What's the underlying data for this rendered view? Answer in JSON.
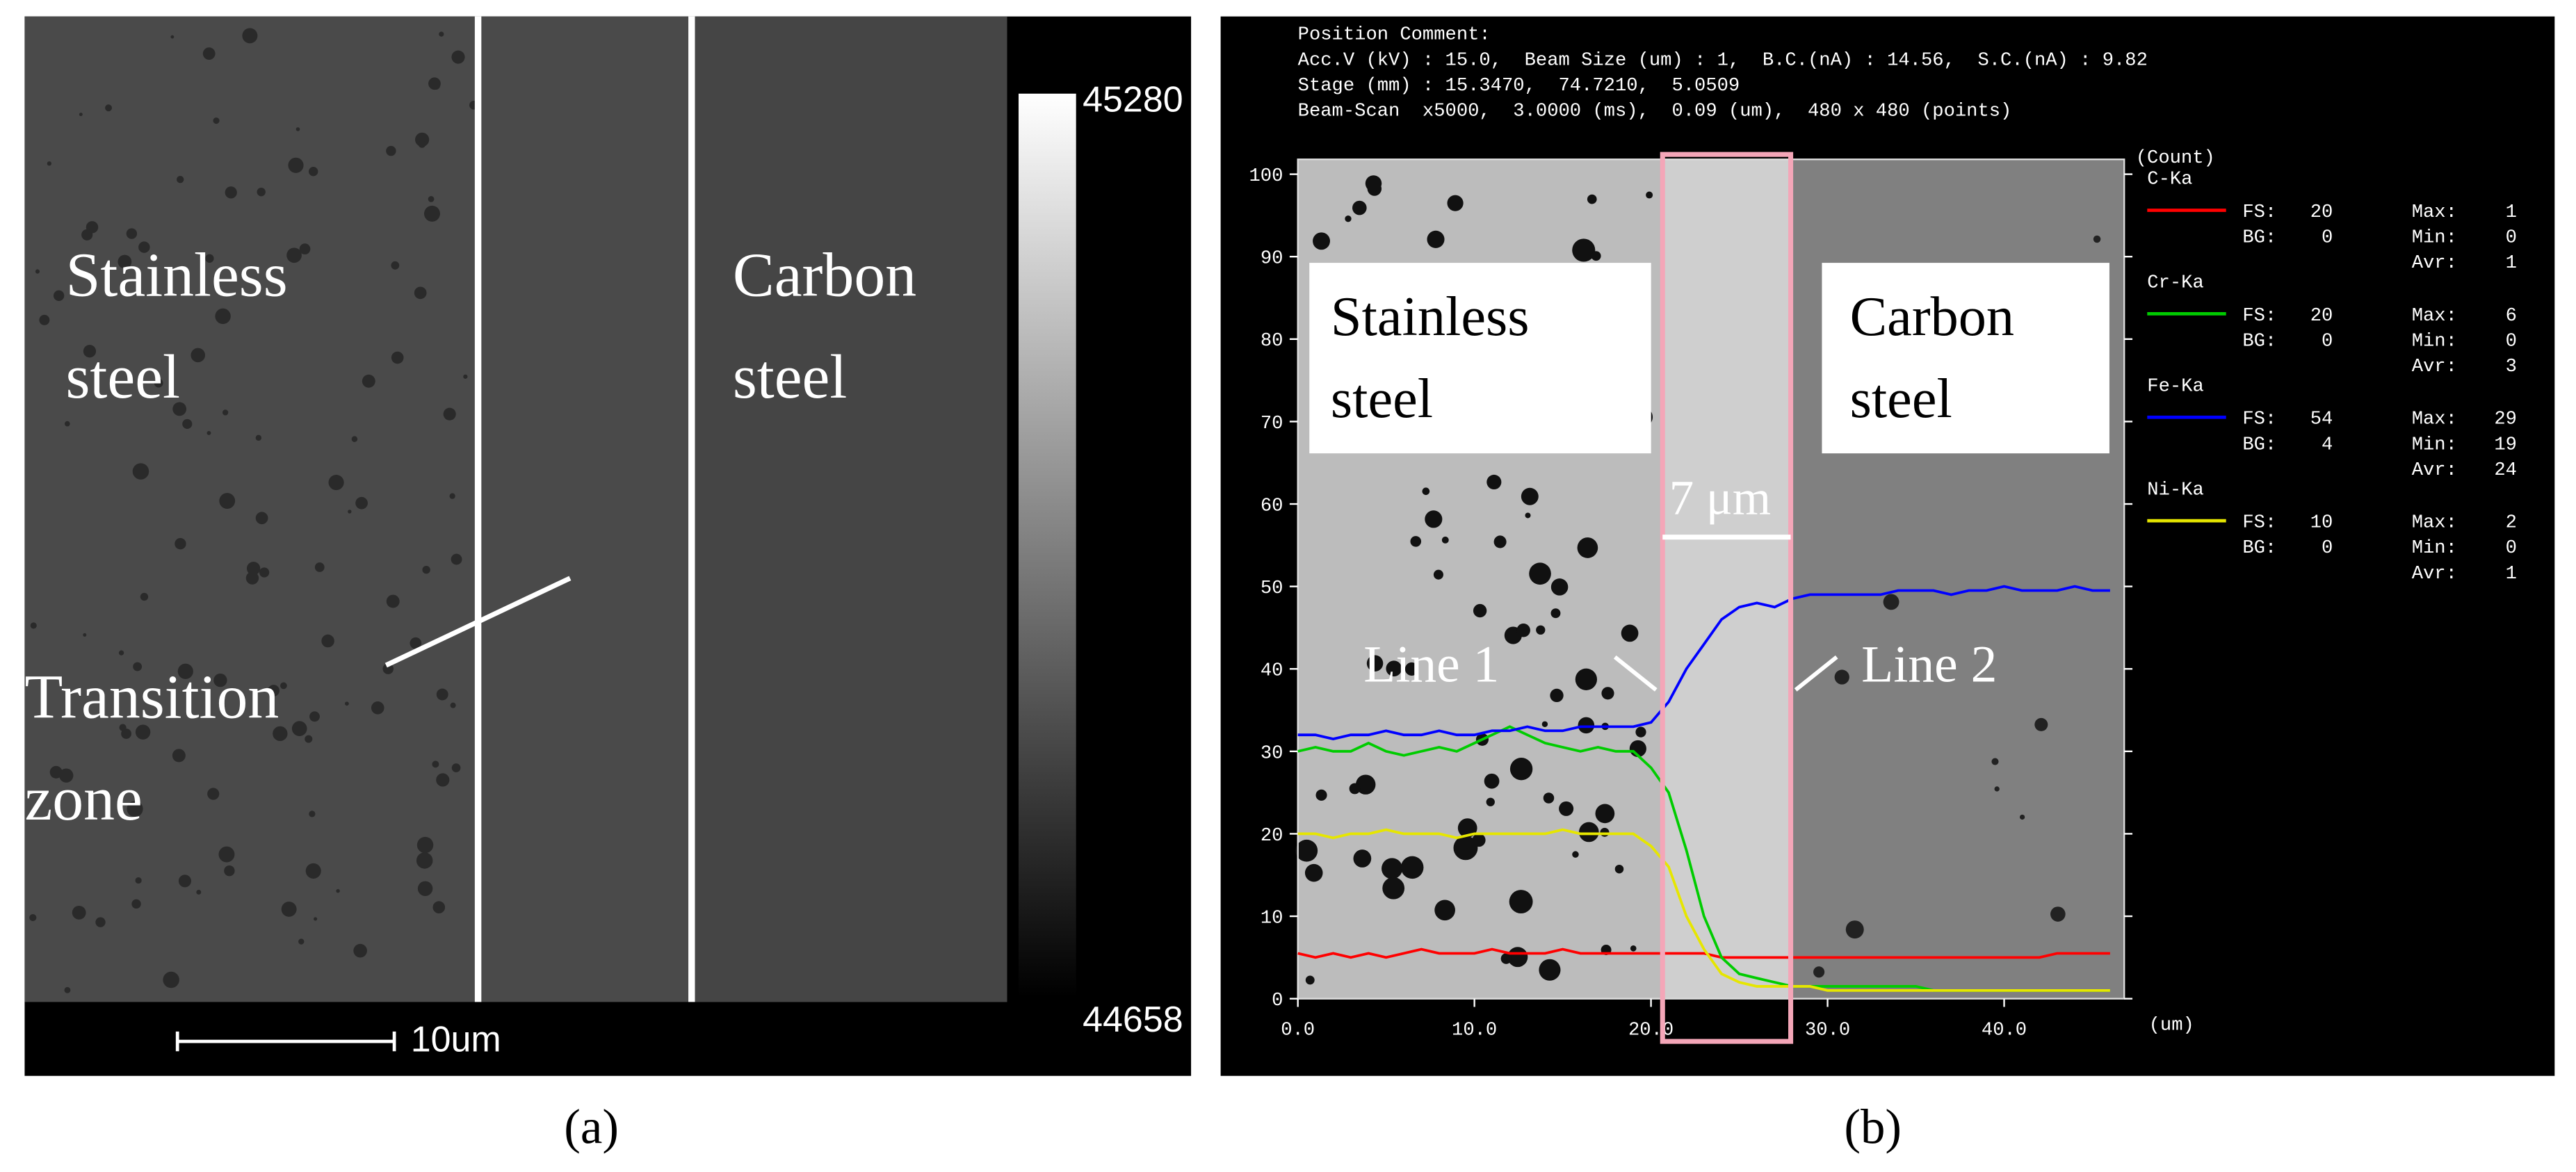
{
  "panel_a": {
    "label": "(a)",
    "left_text": [
      "Stainless",
      "steel"
    ],
    "right_text": [
      "Carbon",
      "steel"
    ],
    "zone_text": [
      "Transition",
      "zone"
    ],
    "scale_text": "10um",
    "colorbar_max": 45280,
    "colorbar_min": 44658
  },
  "chart_data": {
    "type": "line",
    "label": "(b)",
    "header": [
      "Position Comment:",
      "Acc.V (kV) : 15.0,  Beam Size (um) : 1,  B.C.(nA) : 14.56,  S.C.(nA) : 9.82",
      "Stage (mm) : 15.3470,  74.7210,  5.0509",
      "Beam-Scan  x5000,  3.0000 (ms),  0.09 (um),  480 x 480 (points)"
    ],
    "y_label": "(Count)",
    "x_label": "(um)",
    "xlim": [
      0,
      46.8
    ],
    "ylim": [
      0,
      101.8
    ],
    "xticks": [
      {
        "value": 0,
        "label": "0.0"
      },
      {
        "value": 10,
        "label": "10.0"
      },
      {
        "value": 20,
        "label": "20.0"
      },
      {
        "value": 30,
        "label": "30.0"
      },
      {
        "value": 40,
        "label": "40.0"
      }
    ],
    "yticks": [
      0,
      10,
      20,
      30,
      40,
      50,
      60,
      70,
      80,
      90,
      100
    ],
    "annotations": {
      "left": [
        "Stainless",
        "steel"
      ],
      "right": [
        "Carbon",
        "steel"
      ],
      "width": "7 μm",
      "line1": "Line 1",
      "line2": "Line 2"
    },
    "x": [
      0,
      1,
      2,
      3,
      4,
      5,
      6,
      7,
      8,
      9,
      10,
      11,
      12,
      13,
      14,
      15,
      16,
      17,
      18,
      19,
      20,
      21,
      22,
      23,
      24,
      25,
      26,
      27,
      28,
      29,
      30,
      31,
      32,
      33,
      34,
      35,
      36,
      37,
      38,
      39,
      40,
      41,
      42,
      43,
      44,
      45,
      46
    ],
    "series": [
      {
        "name": "C-Ka",
        "color": "#ff0000",
        "values": [
          5.5,
          5,
          5.5,
          5,
          5.5,
          5,
          5.5,
          6,
          5.5,
          5.5,
          5.5,
          6,
          5.5,
          5.5,
          5.5,
          6,
          5.5,
          5.5,
          5.5,
          5.5,
          5.5,
          5.5,
          5.5,
          5.5,
          5,
          5,
          5,
          5,
          5,
          5,
          5,
          5,
          5,
          5,
          5,
          5,
          5,
          5,
          5,
          5,
          5,
          5,
          5,
          5.5,
          5.5,
          5.5,
          5.5
        ],
        "stats": [
          {
            "label": "FS:",
            "value": 20
          },
          {
            "label": "BG:",
            "value": 0
          },
          {
            "label": "Max:",
            "value": 1
          },
          {
            "label": "Min:",
            "value": 0
          },
          {
            "label": "Avr:",
            "value": 1
          }
        ]
      },
      {
        "name": "Cr-Ka",
        "color": "#00cc00",
        "values": [
          30,
          30.5,
          30,
          30,
          31,
          30,
          29.5,
          30,
          30.5,
          30,
          31,
          32,
          33,
          32,
          31,
          30.5,
          30,
          30.5,
          30,
          30,
          28,
          25,
          18,
          10,
          5,
          3,
          2.5,
          2,
          1.5,
          1.5,
          1.5,
          1.5,
          1.5,
          1.5,
          1.5,
          1.5,
          1,
          1,
          1,
          1,
          1,
          1,
          1,
          1,
          1,
          1,
          1
        ],
        "stats": [
          {
            "label": "FS:",
            "value": 20
          },
          {
            "label": "BG:",
            "value": 0
          },
          {
            "label": "Max:",
            "value": 6
          },
          {
            "label": "Min:",
            "value": 0
          },
          {
            "label": "Avr:",
            "value": 3
          }
        ]
      },
      {
        "name": "Fe-Ka",
        "color": "#0000ff",
        "values": [
          32,
          32,
          31.5,
          32,
          32,
          32.5,
          32,
          32,
          32.5,
          32,
          32,
          32.5,
          32.5,
          33,
          32.5,
          32.5,
          33,
          33,
          33,
          33,
          33.5,
          36,
          40,
          43,
          46,
          47.5,
          48,
          47.5,
          48.5,
          49,
          49,
          49,
          49,
          49,
          49.5,
          49.5,
          49.5,
          49,
          49.5,
          49.5,
          50,
          49.5,
          49.5,
          49.5,
          50,
          49.5,
          49.5
        ],
        "stats": [
          {
            "label": "FS:",
            "value": 54
          },
          {
            "label": "BG:",
            "value": 4
          },
          {
            "label": "Max:",
            "value": 29
          },
          {
            "label": "Min:",
            "value": 19
          },
          {
            "label": "Avr:",
            "value": 24
          }
        ]
      },
      {
        "name": "Ni-Ka",
        "color": "#e6e600",
        "values": [
          20,
          20,
          19.5,
          20,
          20,
          20.5,
          20,
          20,
          20,
          19.5,
          20,
          20,
          20,
          20,
          20,
          20.5,
          20,
          20,
          20,
          20,
          18.5,
          16,
          10,
          6,
          3,
          2,
          1.5,
          1.5,
          1.5,
          1.5,
          1,
          1,
          1,
          1,
          1,
          1,
          1,
          1,
          1,
          1,
          1,
          1,
          1,
          1,
          1,
          1,
          1
        ],
        "stats": [
          {
            "label": "FS:",
            "value": 10
          },
          {
            "label": "BG:",
            "value": 0
          },
          {
            "label": "Max:",
            "value": 2
          },
          {
            "label": "Min:",
            "value": 0
          },
          {
            "label": "Avr:",
            "value": 1
          }
        ]
      }
    ]
  }
}
